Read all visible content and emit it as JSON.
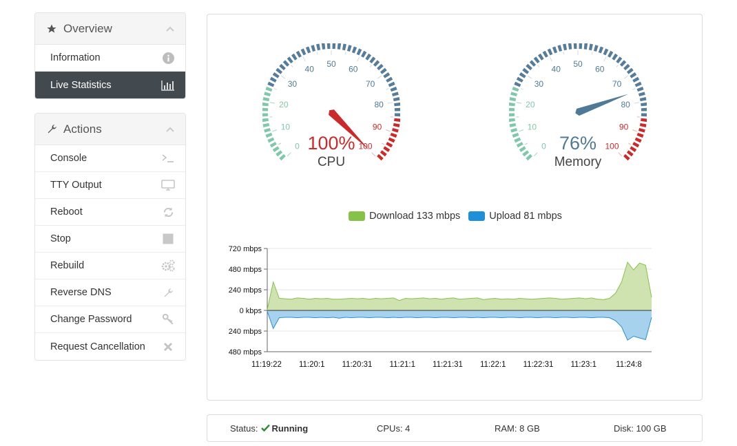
{
  "sidebar": {
    "overview": {
      "title": "Overview",
      "items": [
        {
          "label": "Information",
          "icon": "info-icon"
        },
        {
          "label": "Live Statistics",
          "icon": "bar-chart-icon",
          "active": true
        }
      ]
    },
    "actions": {
      "title": "Actions",
      "items": [
        {
          "label": "Console",
          "icon": "terminal-icon"
        },
        {
          "label": "TTY Output",
          "icon": "monitor-icon"
        },
        {
          "label": "Reboot",
          "icon": "refresh-icon"
        },
        {
          "label": "Stop",
          "icon": "stop-icon"
        },
        {
          "label": "Rebuild",
          "icon": "gears-icon"
        },
        {
          "label": "Reverse DNS",
          "icon": "wrench-icon"
        },
        {
          "label": "Change Password",
          "icon": "key-icon"
        },
        {
          "label": "Request Cancellation",
          "icon": "close-icon"
        }
      ]
    }
  },
  "gauges": [
    {
      "value": 100,
      "value_text": "100%",
      "label": "CPU",
      "value_color": "#cc2a2a",
      "needle_color": "#cc2a2a",
      "ticks": [
        "0",
        "10",
        "20",
        "30",
        "40",
        "50",
        "60",
        "70",
        "80",
        "90",
        "100"
      ]
    },
    {
      "value": 76,
      "value_text": "76%",
      "label": "Memory",
      "value_color": "#4e7a95",
      "needle_color": "#4e7a95",
      "ticks": [
        "0",
        "10",
        "20",
        "30",
        "40",
        "50",
        "60",
        "70",
        "80",
        "90",
        "100"
      ]
    }
  ],
  "colors": {
    "gauge_green": "#7fc8a9",
    "gauge_blue": "#567c9b",
    "gauge_red": "#cc2a2a",
    "download_fill": "#cfe3b0",
    "download_line": "#86c24a",
    "upload_fill": "#a7d2ee",
    "upload_line": "#2a8fd1",
    "legend_download": "#86c24a",
    "legend_upload": "#1f90d8",
    "check_green": "#2e8b2e"
  },
  "legend": {
    "download": "Download 133 mbps",
    "upload": "Upload 81 mbps"
  },
  "chart_data": {
    "type": "area",
    "y_tick_labels": [
      "720 mbps",
      "480 mbps",
      "240 mbps",
      "0 kbps",
      "240 mbps",
      "480 mbps"
    ],
    "ylim": [
      -480,
      720
    ],
    "x_tick_labels": [
      "11:19:22",
      "11:20:1",
      "11:20:31",
      "11:21:1",
      "11:21:31",
      "11:22:1",
      "11:22:31",
      "11:23:1",
      "11:24:8"
    ],
    "grid": true,
    "legend_position": "top-center",
    "series": [
      {
        "name": "Download",
        "values": [
          10,
          330,
          140,
          135,
          130,
          145,
          140,
          130,
          140,
          135,
          140,
          130,
          130,
          135,
          140,
          135,
          140,
          130,
          140,
          135,
          140,
          145,
          115,
          140,
          135,
          140,
          145,
          135,
          140,
          130,
          140,
          145,
          130,
          135,
          140,
          145,
          125,
          135,
          140,
          130,
          135,
          130,
          140,
          135,
          130,
          135,
          140,
          145,
          140,
          130,
          135,
          140,
          145,
          135,
          145,
          130,
          125,
          140,
          200,
          330,
          560,
          470,
          550,
          525,
          150
        ]
      },
      {
        "name": "Upload",
        "values": [
          -10,
          -210,
          -85,
          -80,
          -80,
          -85,
          -80,
          -80,
          -85,
          -80,
          -85,
          -80,
          -90,
          -80,
          -85,
          -80,
          -80,
          -85,
          -80,
          -80,
          -85,
          -80,
          -85,
          -80,
          -80,
          -85,
          -80,
          -80,
          -85,
          -80,
          -80,
          -85,
          -80,
          -80,
          -85,
          -80,
          -85,
          -80,
          -80,
          -85,
          -80,
          -80,
          -85,
          -80,
          -80,
          -85,
          -80,
          -80,
          -85,
          -80,
          -80,
          -85,
          -80,
          -80,
          -85,
          -80,
          -80,
          -85,
          -120,
          -190,
          -345,
          -300,
          -320,
          -340,
          -80
        ]
      }
    ]
  },
  "status": {
    "status_label": "Status:",
    "status_value": "Running",
    "cpus": "CPUs: 4",
    "ram": "RAM: 8 GB",
    "disk": "Disk: 100 GB"
  }
}
